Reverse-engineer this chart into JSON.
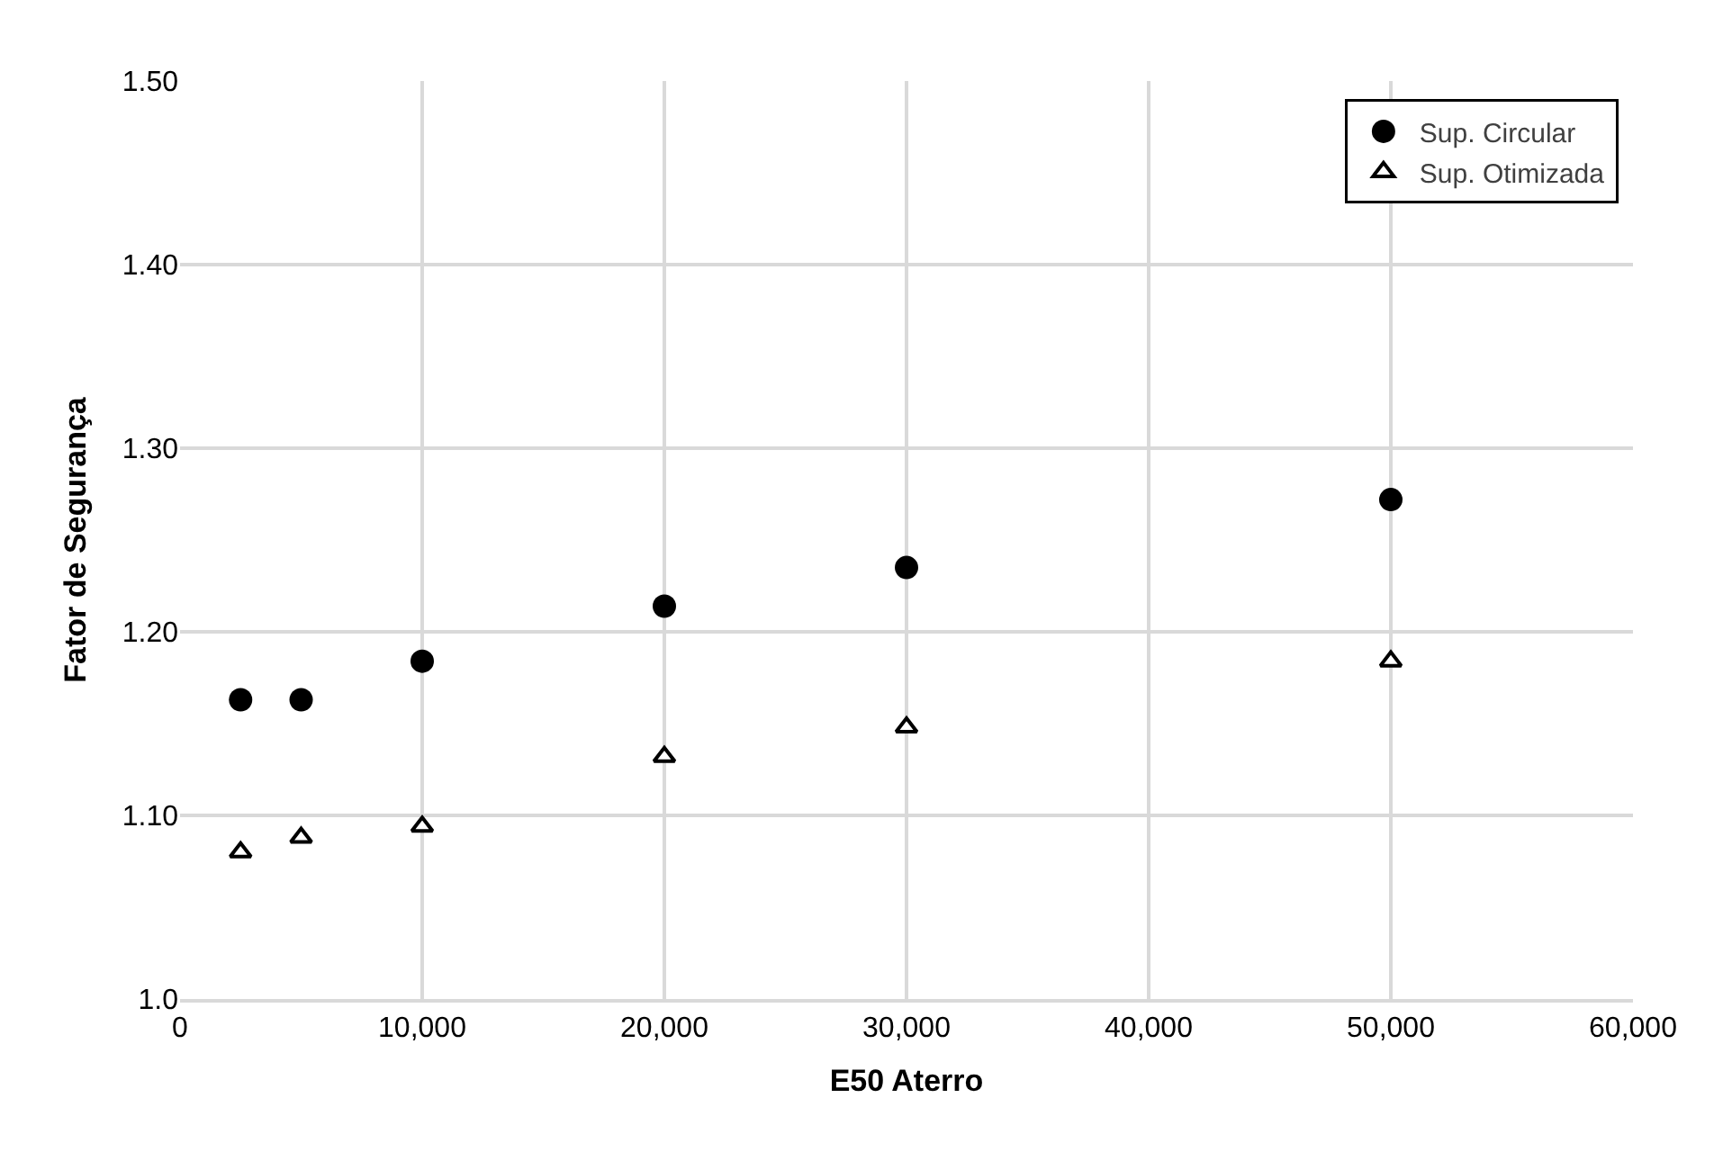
{
  "chart_data": {
    "type": "scatter",
    "xlabel": "E50 Aterro",
    "ylabel": "Fator de Segurança",
    "xlim": [
      0,
      60000
    ],
    "xticks": [
      0,
      {
        "value": 10000,
        "label": "10,000"
      },
      {
        "value": 20000,
        "label": "20,000"
      },
      {
        "value": 30000,
        "label": "30,000"
      },
      {
        "value": 40000,
        "label": "40,000"
      },
      {
        "value": 50000,
        "label": "50,000"
      },
      {
        "value": 60000,
        "label": "60,000"
      }
    ],
    "ylim": [
      1.0,
      1.5
    ],
    "yticks": [
      {
        "value": 1.0,
        "label": "1.0"
      },
      {
        "value": 1.1,
        "label": "1.10"
      },
      {
        "value": 1.2,
        "label": "1.20"
      },
      {
        "value": 1.3,
        "label": "1.30"
      },
      {
        "value": 1.4,
        "label": "1.40"
      },
      {
        "value": 1.5,
        "label": "1.50"
      }
    ],
    "grid": true,
    "legend": "top right",
    "x": [
      2500,
      5000,
      10000,
      20000,
      30000,
      50000
    ],
    "series": [
      {
        "name": "Sup. Circular",
        "color": "#000000",
        "marker": "circle",
        "values": [
          1.163,
          1.163,
          1.184,
          1.214,
          1.235,
          1.272
        ]
      },
      {
        "name": "Sup. Otimizada",
        "color": "#000000",
        "marker": "triangle",
        "values": [
          1.08,
          1.088,
          1.094,
          1.132,
          1.148,
          1.184
        ]
      }
    ]
  }
}
